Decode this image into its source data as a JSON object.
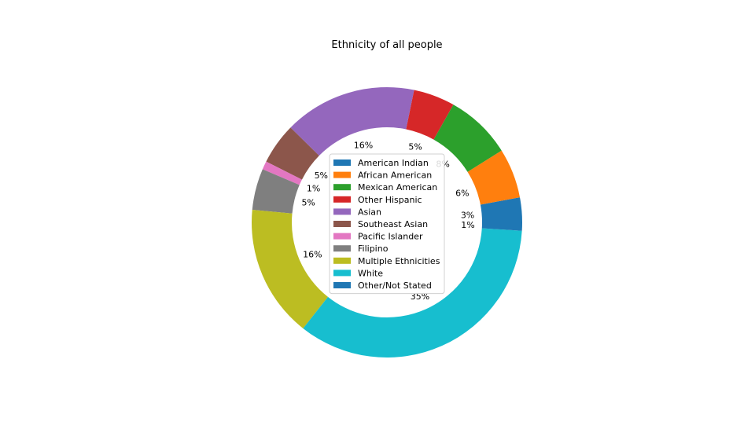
{
  "chart_data": {
    "type": "pie",
    "donut": true,
    "title": "Ethnicity of all people",
    "legend_position": "center",
    "slices": [
      {
        "label": "American Indian",
        "value": 3,
        "pct_label": "3%",
        "color": "#1f77b4"
      },
      {
        "label": "African American",
        "value": 6,
        "pct_label": "6%",
        "color": "#ff7f0e"
      },
      {
        "label": "Mexican American",
        "value": 8,
        "pct_label": "8%",
        "color": "#2ca02c"
      },
      {
        "label": "Other Hispanic",
        "value": 5,
        "pct_label": "5%",
        "color": "#d62728"
      },
      {
        "label": "Asian",
        "value": 16,
        "pct_label": "16%",
        "color": "#9467bd"
      },
      {
        "label": "Southeast Asian",
        "value": 5,
        "pct_label": "5%",
        "color": "#8c564b"
      },
      {
        "label": "Pacific Islander",
        "value": 1,
        "pct_label": "1%",
        "color": "#e377c2"
      },
      {
        "label": "Filipino",
        "value": 5,
        "pct_label": "5%",
        "color": "#7f7f7f"
      },
      {
        "label": "Multiple Ethnicities",
        "value": 16,
        "pct_label": "16%",
        "color": "#bcbd22"
      },
      {
        "label": "White",
        "value": 35,
        "pct_label": "35%",
        "color": "#17becf"
      },
      {
        "label": "Other/Not Stated",
        "value": 1,
        "pct_label": "1%",
        "color": "#1f77b4"
      }
    ]
  }
}
